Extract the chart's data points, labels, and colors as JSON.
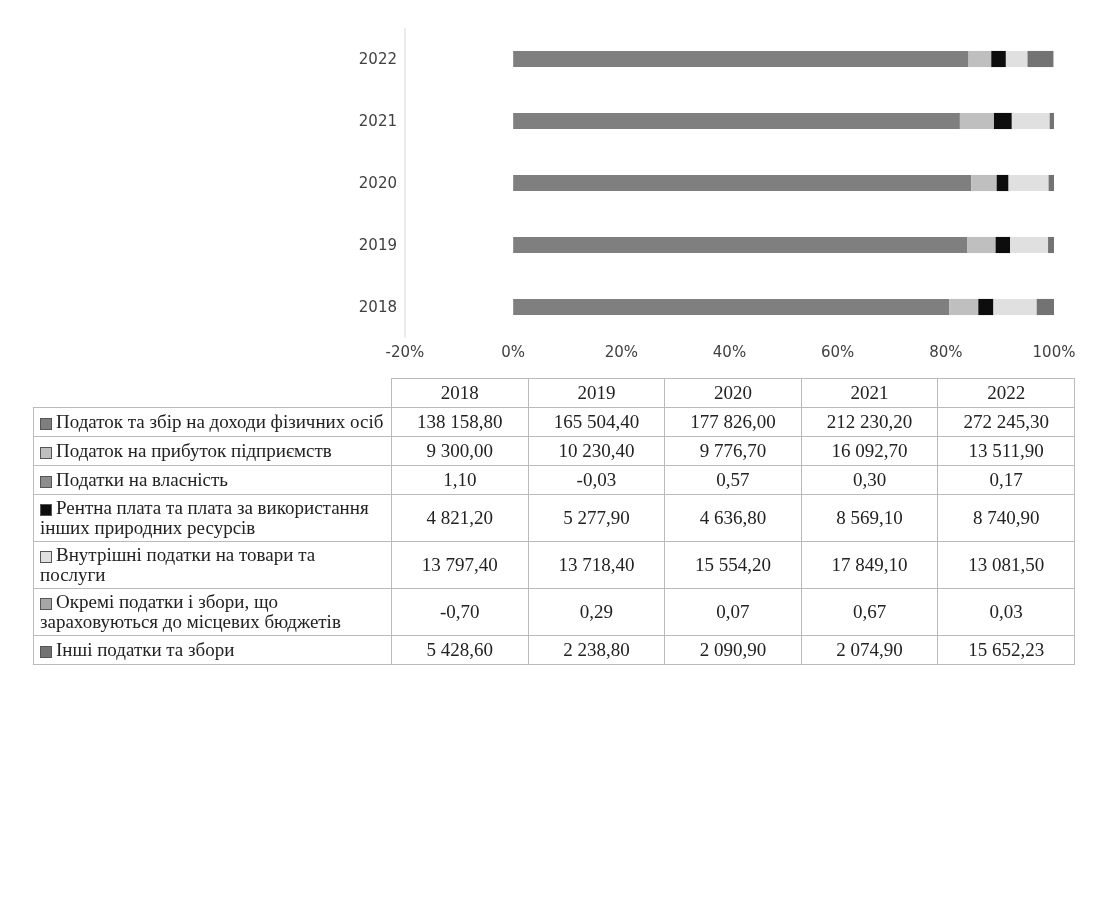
{
  "chart_data": {
    "type": "bar",
    "orientation": "horizontal",
    "stacked": true,
    "categories": [
      "2022",
      "2021",
      "2020",
      "2019",
      "2018"
    ],
    "xlim": [
      -20,
      100
    ],
    "xticks": [
      {
        "value": -20,
        "label": "-20%"
      },
      {
        "value": 0,
        "label": "0%"
      },
      {
        "value": 20,
        "label": "20%"
      },
      {
        "value": 40,
        "label": "40%"
      },
      {
        "value": 60,
        "label": "60%"
      },
      {
        "value": 80,
        "label": "80%"
      },
      {
        "value": 100,
        "label": "100%"
      }
    ],
    "legend": "bottom",
    "series": [
      {
        "name": "Податок та збір на доходи фізичних осіб",
        "color": "#7f7f7f",
        "values": [
          84.2,
          82.6,
          84.7,
          84.0,
          80.6
        ]
      },
      {
        "name": "Податок на прибуток підприємств",
        "color": "#bfbfbf",
        "values": [
          4.2,
          6.3,
          4.7,
          5.2,
          5.4
        ]
      },
      {
        "name": "Податки на власність",
        "color": "#8c8c8c",
        "values": [
          0,
          0,
          0,
          0,
          0
        ]
      },
      {
        "name": "Рентна плата та плата за використання інших природних ресурсів",
        "color": "#0d0d0d",
        "values": [
          2.7,
          3.3,
          2.2,
          2.7,
          2.8
        ]
      },
      {
        "name": "Внутрішні податки на товари та послуги",
        "color": "#e0e0e0",
        "values": [
          4.0,
          7.0,
          7.4,
          7.0,
          8.0
        ]
      },
      {
        "name": "Окремі податки і збори, що зараховуються до місцевих бюджетів",
        "color": "#a6a6a6",
        "values": [
          0,
          0,
          0,
          0,
          0
        ]
      },
      {
        "name": "Інші податки та збори",
        "color": "#737373",
        "values": [
          4.8,
          0.8,
          1.0,
          1.1,
          3.2
        ]
      }
    ],
    "annotations": [
      "138 158,80",
      "165 504,40",
      "177 826,00",
      "212 230,20",
      "272 245,30",
      "9 300,00",
      "10 230,40",
      "9 776,70",
      "16 092,70",
      "13 511,90",
      "1,10",
      "-0,03",
      "0,57",
      "0,30",
      "0,17",
      "4 821,20",
      "5 277,90",
      "4 636,80",
      "8 569,10",
      "8 740,90",
      "13 797,40",
      "13 718,40",
      "15 554,20",
      "17 849,10",
      "13 081,50",
      "-0,70",
      "0,29",
      "0,07",
      "0,67",
      "0,03",
      "5 428,60",
      "2 238,80",
      "2 090,90",
      "2 074,90",
      "15 652,23"
    ]
  }
}
